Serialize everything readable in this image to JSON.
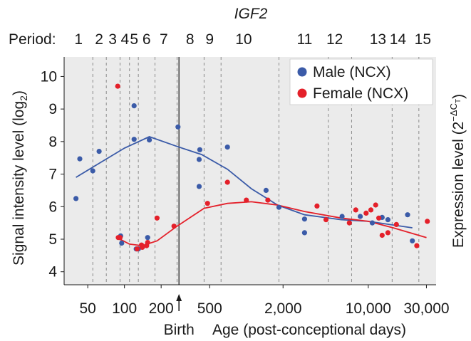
{
  "chart_data": {
    "type": "scatter",
    "title": "IGF2",
    "period_label": "Period:",
    "periods": [
      {
        "label": "1",
        "x": 42
      },
      {
        "label": "2",
        "x": 62
      },
      {
        "label": "3",
        "x": 80
      },
      {
        "label": "4",
        "x": 101
      },
      {
        "label": "5",
        "x": 120
      },
      {
        "label": "6",
        "x": 152
      },
      {
        "label": "7",
        "x": 210
      },
      {
        "label": "8",
        "x": 345
      },
      {
        "label": "9",
        "x": 500
      },
      {
        "label": "10",
        "x": 950
      },
      {
        "label": "11",
        "x": 3000
      },
      {
        "label": "12",
        "x": 5300
      },
      {
        "label": "13",
        "x": 12000
      },
      {
        "label": "14",
        "x": 17500
      },
      {
        "label": "15",
        "x": 28000
      }
    ],
    "period_boundaries": [
      55,
      71,
      92,
      110,
      130,
      178,
      270,
      450,
      620,
      1850,
      4700,
      7300,
      15700,
      26000
    ],
    "x_scale": "log",
    "xlim": [
      32,
      36000
    ],
    "x_ticks": [
      50,
      100,
      200,
      500,
      2000,
      10000,
      30000
    ],
    "x_tick_labels": [
      "50",
      "100",
      "200",
      "500",
      "2,000",
      "10,000",
      "30,000"
    ],
    "xlabel": "Age (post-conceptional days)",
    "birth": {
      "x": 280,
      "label": "Birth"
    },
    "ylim": [
      3.6,
      10.6
    ],
    "y_ticks": [
      4,
      5,
      6,
      7,
      8,
      9,
      10
    ],
    "ylabel_left": "Signal intensity level (log",
    "ylabel_left_sub": "2",
    "ylabel_left_close": ")",
    "ylabel_right": "Expression level (2",
    "ylabel_right_sup": "−ΔC",
    "ylabel_right_sub": "T",
    "ylabel_right_close": ")",
    "grid": true,
    "legend_position": "top-right",
    "series": [
      {
        "name": "Male (NCX)",
        "color": "#3b5ba8",
        "points": [
          [
            40,
            6.25
          ],
          [
            43,
            7.47
          ],
          [
            55,
            7.1
          ],
          [
            62,
            7.7
          ],
          [
            93,
            5.1
          ],
          [
            95,
            4.88
          ],
          [
            120,
            9.1
          ],
          [
            120,
            8.07
          ],
          [
            125,
            4.7
          ],
          [
            130,
            4.7
          ],
          [
            155,
            5.05
          ],
          [
            160,
            8.05
          ],
          [
            275,
            8.45
          ],
          [
            410,
            6.62
          ],
          [
            410,
            7.45
          ],
          [
            415,
            7.75
          ],
          [
            700,
            7.83
          ],
          [
            1450,
            6.5
          ],
          [
            1850,
            5.98
          ],
          [
            3000,
            5.2
          ],
          [
            3000,
            5.62
          ],
          [
            6100,
            5.7
          ],
          [
            8600,
            5.7
          ],
          [
            10800,
            5.5
          ],
          [
            13000,
            5.67
          ],
          [
            14500,
            5.6
          ],
          [
            21000,
            5.75
          ],
          [
            23000,
            4.95
          ]
        ],
        "trend": [
          [
            40,
            6.9
          ],
          [
            60,
            7.3
          ],
          [
            100,
            7.8
          ],
          [
            160,
            8.15
          ],
          [
            270,
            7.85
          ],
          [
            430,
            7.6
          ],
          [
            700,
            7.15
          ],
          [
            1100,
            6.55
          ],
          [
            1800,
            6.05
          ],
          [
            3000,
            5.75
          ],
          [
            6000,
            5.6
          ],
          [
            10000,
            5.55
          ],
          [
            15000,
            5.45
          ],
          [
            23000,
            5.35
          ]
        ]
      },
      {
        "name": "Female (NCX)",
        "color": "#e4202a",
        "points": [
          [
            88,
            9.7
          ],
          [
            89,
            5.05
          ],
          [
            92,
            5.05
          ],
          [
            127,
            4.7
          ],
          [
            138,
            4.82
          ],
          [
            140,
            4.75
          ],
          [
            152,
            4.8
          ],
          [
            155,
            4.9
          ],
          [
            185,
            5.65
          ],
          [
            255,
            5.4
          ],
          [
            480,
            6.1
          ],
          [
            700,
            6.75
          ],
          [
            1000,
            6.2
          ],
          [
            1500,
            6.2
          ],
          [
            3800,
            6.02
          ],
          [
            4500,
            5.6
          ],
          [
            7000,
            5.5
          ],
          [
            7900,
            5.9
          ],
          [
            9600,
            5.8
          ],
          [
            10500,
            5.9
          ],
          [
            11500,
            6.05
          ],
          [
            12200,
            5.65
          ],
          [
            13000,
            5.12
          ],
          [
            14500,
            5.2
          ],
          [
            17000,
            5.45
          ],
          [
            25000,
            4.8
          ],
          [
            30500,
            5.55
          ]
        ],
        "trend": [
          [
            92,
            5.0
          ],
          [
            110,
            4.85
          ],
          [
            140,
            4.8
          ],
          [
            185,
            4.95
          ],
          [
            270,
            5.4
          ],
          [
            450,
            5.95
          ],
          [
            700,
            6.1
          ],
          [
            1100,
            6.15
          ],
          [
            1800,
            6.05
          ],
          [
            3000,
            5.85
          ],
          [
            6000,
            5.65
          ],
          [
            10000,
            5.55
          ],
          [
            16000,
            5.35
          ],
          [
            30000,
            5.05
          ]
        ]
      }
    ]
  }
}
